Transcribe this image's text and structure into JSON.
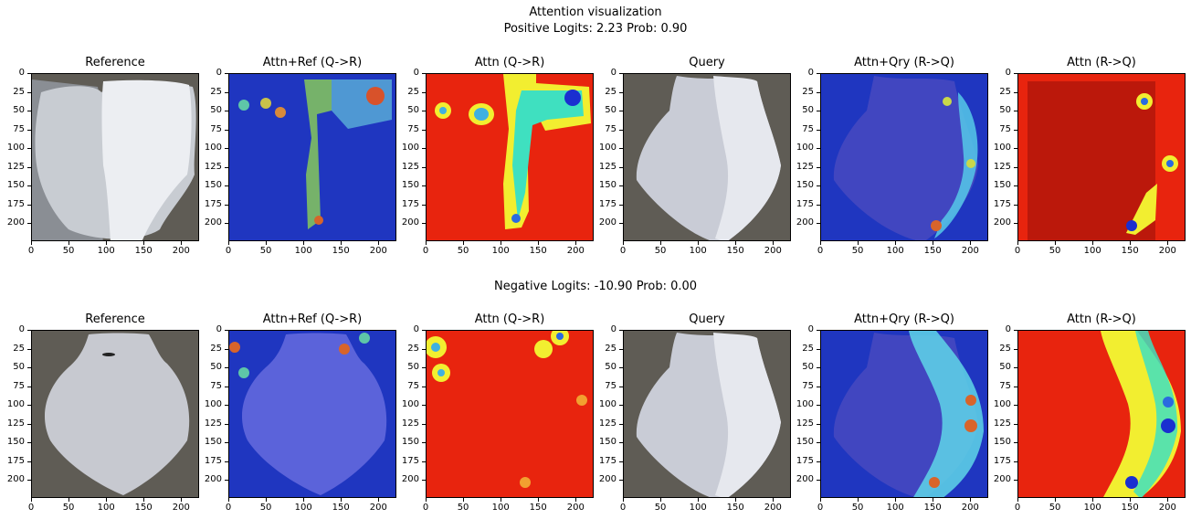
{
  "figure": {
    "suptitle": "Attention visualization",
    "rows": [
      {
        "label": "Positive  Logits: 2.23 Prob: 0.90"
      },
      {
        "label": "Negative Logits: -10.90 Prob: 0.00"
      }
    ],
    "panel_titles": [
      "Reference",
      "Attn+Ref (Q->R)",
      "Attn (Q->R)",
      "Query",
      "Attn+Qry (R->Q)",
      "Attn (R->Q)"
    ]
  },
  "chart_data": [
    {
      "type": "heatmap",
      "row": "positive",
      "title": "Reference",
      "kind": "photo",
      "xticks": [
        0,
        50,
        100,
        150,
        200
      ],
      "yticks": [
        0,
        25,
        50,
        75,
        100,
        125,
        150,
        175,
        200
      ],
      "xlim": [
        0,
        224
      ],
      "ylim": [
        224,
        0
      ]
    },
    {
      "type": "heatmap",
      "row": "positive",
      "title": "Attn+Ref (Q->R)",
      "kind": "overlay",
      "colormap": "jet",
      "xticks": [
        0,
        50,
        100,
        150,
        200
      ],
      "yticks": [
        0,
        25,
        50,
        75,
        100,
        125,
        150,
        175,
        200
      ],
      "xlim": [
        0,
        224
      ],
      "ylim": [
        224,
        0
      ]
    },
    {
      "type": "heatmap",
      "row": "positive",
      "title": "Attn (Q->R)",
      "kind": "attention",
      "colormap": "jet",
      "xticks": [
        0,
        50,
        100,
        150,
        200
      ],
      "yticks": [
        0,
        25,
        50,
        75,
        100,
        125,
        150,
        175,
        200
      ],
      "xlim": [
        0,
        224
      ],
      "ylim": [
        224,
        0
      ]
    },
    {
      "type": "heatmap",
      "row": "positive",
      "title": "Query",
      "kind": "photo",
      "xticks": [
        0,
        50,
        100,
        150,
        200
      ],
      "yticks": [
        0,
        25,
        50,
        75,
        100,
        125,
        150,
        175,
        200
      ],
      "xlim": [
        0,
        224
      ],
      "ylim": [
        224,
        0
      ]
    },
    {
      "type": "heatmap",
      "row": "positive",
      "title": "Attn+Qry (R->Q)",
      "kind": "overlay",
      "colormap": "jet",
      "xticks": [
        0,
        50,
        100,
        150,
        200
      ],
      "yticks": [
        0,
        25,
        50,
        75,
        100,
        125,
        150,
        175,
        200
      ],
      "xlim": [
        0,
        224
      ],
      "ylim": [
        224,
        0
      ]
    },
    {
      "type": "heatmap",
      "row": "positive",
      "title": "Attn (R->Q)",
      "kind": "attention",
      "colormap": "jet",
      "xticks": [
        0,
        50,
        100,
        150,
        200
      ],
      "yticks": [
        0,
        25,
        50,
        75,
        100,
        125,
        150,
        175,
        200
      ],
      "xlim": [
        0,
        224
      ],
      "ylim": [
        224,
        0
      ]
    },
    {
      "type": "heatmap",
      "row": "negative",
      "title": "Reference",
      "kind": "photo",
      "xticks": [
        0,
        50,
        100,
        150,
        200
      ],
      "yticks": [
        0,
        25,
        50,
        75,
        100,
        125,
        150,
        175,
        200
      ],
      "xlim": [
        0,
        224
      ],
      "ylim": [
        224,
        0
      ]
    },
    {
      "type": "heatmap",
      "row": "negative",
      "title": "Attn+Ref (Q->R)",
      "kind": "overlay",
      "colormap": "jet",
      "xticks": [
        0,
        50,
        100,
        150,
        200
      ],
      "yticks": [
        0,
        25,
        50,
        75,
        100,
        125,
        150,
        175,
        200
      ],
      "xlim": [
        0,
        224
      ],
      "ylim": [
        224,
        0
      ]
    },
    {
      "type": "heatmap",
      "row": "negative",
      "title": "Attn (Q->R)",
      "kind": "attention",
      "colormap": "jet",
      "xticks": [
        0,
        50,
        100,
        150,
        200
      ],
      "yticks": [
        0,
        25,
        50,
        75,
        100,
        125,
        150,
        175,
        200
      ],
      "xlim": [
        0,
        224
      ],
      "ylim": [
        224,
        0
      ]
    },
    {
      "type": "heatmap",
      "row": "negative",
      "title": "Query",
      "kind": "photo",
      "xticks": [
        0,
        50,
        100,
        150,
        200
      ],
      "yticks": [
        0,
        25,
        50,
        75,
        100,
        125,
        150,
        175,
        200
      ],
      "xlim": [
        0,
        224
      ],
      "ylim": [
        224,
        0
      ]
    },
    {
      "type": "heatmap",
      "row": "negative",
      "title": "Attn+Qry (R->Q)",
      "kind": "overlay",
      "colormap": "jet",
      "xticks": [
        0,
        50,
        100,
        150,
        200
      ],
      "yticks": [
        0,
        25,
        50,
        75,
        100,
        125,
        150,
        175,
        200
      ],
      "xlim": [
        0,
        224
      ],
      "ylim": [
        224,
        0
      ]
    },
    {
      "type": "heatmap",
      "row": "negative",
      "title": "Attn (R->Q)",
      "kind": "attention",
      "colormap": "jet",
      "xticks": [
        0,
        50,
        100,
        150,
        200
      ],
      "yticks": [
        0,
        25,
        50,
        75,
        100,
        125,
        150,
        175,
        200
      ],
      "xlim": [
        0,
        224
      ],
      "ylim": [
        224,
        0
      ]
    }
  ]
}
